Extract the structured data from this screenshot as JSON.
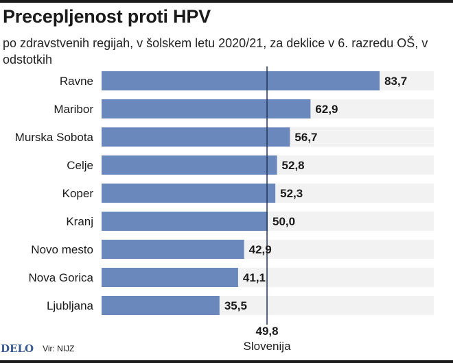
{
  "title": "Precepljenost proti HPV",
  "subtitle": "po zdravstvenih regijah, v šolskem letu 2020/21, za deklice v 6. razredu OŠ, v odstotkih",
  "footer": {
    "logo": "DELO",
    "source": "Vir: NIJZ"
  },
  "colors": {
    "bar": "#6b88bd",
    "track": "#f2f2f2",
    "reference_line": "#1f3552",
    "text": "#1a1a1a"
  },
  "chart_data": {
    "type": "bar",
    "orientation": "horizontal",
    "categories": [
      "Ravne",
      "Maribor",
      "Murska Sobota",
      "Celje",
      "Koper",
      "Kranj",
      "Novo mesto",
      "Nova Gorica",
      "Ljubljana"
    ],
    "values": [
      83.7,
      62.9,
      56.7,
      52.8,
      52.3,
      50.0,
      42.9,
      41.1,
      35.5
    ],
    "value_labels": [
      "83,7",
      "62,9",
      "56,7",
      "52,8",
      "52,3",
      "50,0",
      "42,9",
      "41,1",
      "35,5"
    ],
    "xlim": [
      0,
      100
    ],
    "reference": {
      "value": 49.8,
      "value_label": "49,8",
      "label": "Slovenija"
    },
    "grid": false,
    "legend": "none"
  }
}
